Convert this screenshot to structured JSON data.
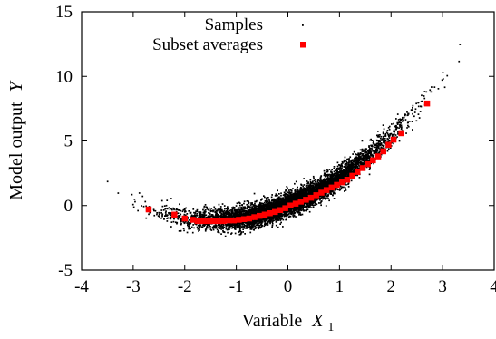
{
  "chart_data": {
    "type": "scatter",
    "xlabel": "Variable",
    "xlabel_symbol": "X",
    "xlabel_subscript": "1",
    "ylabel": "Model output",
    "ylabel_symbol": "Y",
    "xlim": [
      -4,
      4
    ],
    "ylim": [
      -5,
      15
    ],
    "xticks": [
      -4,
      -3,
      -2,
      -1,
      0,
      1,
      2,
      3,
      4
    ],
    "yticks": [
      -5,
      0,
      5,
      10,
      15
    ],
    "legend_position": "top",
    "grid": false,
    "series": [
      {
        "name": "Samples",
        "kind": "points",
        "color": "#000000",
        "approximate_relation": "Y ≈ 0.55·X1² + 1.6·X1 + 0.05, spread ±1.2",
        "x_range": [
          -3.7,
          3.4
        ],
        "sample_count_estimate": 10000
      },
      {
        "name": "Subset averages",
        "kind": "squares",
        "color": "#ff0000",
        "x": [
          -2.7,
          -2.2,
          -2.0,
          -1.85,
          -1.75,
          -1.65,
          -1.55,
          -1.45,
          -1.35,
          -1.25,
          -1.15,
          -1.05,
          -0.95,
          -0.85,
          -0.75,
          -0.65,
          -0.55,
          -0.45,
          -0.35,
          -0.25,
          -0.15,
          -0.05,
          0.05,
          0.15,
          0.25,
          0.35,
          0.45,
          0.55,
          0.65,
          0.75,
          0.85,
          0.95,
          1.05,
          1.15,
          1.25,
          1.35,
          1.45,
          1.55,
          1.65,
          1.75,
          1.85,
          1.95,
          2.05,
          2.2,
          2.7
        ],
        "y": [
          -0.3,
          -0.7,
          -1.0,
          -1.1,
          -1.2,
          -1.2,
          -1.2,
          -1.2,
          -1.2,
          -1.2,
          -1.15,
          -1.15,
          -1.1,
          -1.05,
          -1.0,
          -0.9,
          -0.8,
          -0.7,
          -0.6,
          -0.5,
          -0.35,
          -0.2,
          0.0,
          0.15,
          0.3,
          0.45,
          0.6,
          0.8,
          1.0,
          1.2,
          1.4,
          1.6,
          1.8,
          2.0,
          2.3,
          2.6,
          2.9,
          3.2,
          3.5,
          3.8,
          4.2,
          4.7,
          5.1,
          5.6,
          7.9
        ]
      }
    ]
  }
}
